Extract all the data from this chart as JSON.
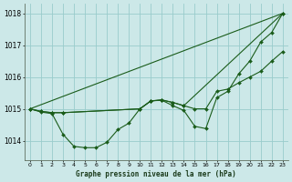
{
  "title": "Graphe pression niveau de la mer (hPa)",
  "background_color": "#cce8e8",
  "grid_color": "#99cccc",
  "line_color": "#1a5c1a",
  "xlim": [
    -0.5,
    23.5
  ],
  "ylim": [
    1013.4,
    1018.3
  ],
  "yticks": [
    1014,
    1015,
    1016,
    1017,
    1018
  ],
  "xtick_labels": [
    "0",
    "1",
    "2",
    "3",
    "4",
    "5",
    "6",
    "7",
    "8",
    "9",
    "10",
    "11",
    "12",
    "13",
    "14",
    "15",
    "16",
    "17",
    "18",
    "19",
    "20",
    "21",
    "22",
    "23"
  ],
  "series1_x": [
    0,
    1,
    2,
    3,
    4,
    5,
    6,
    7,
    8,
    9,
    10,
    11,
    12,
    13,
    14,
    15,
    16,
    17,
    18,
    19,
    20,
    21,
    22,
    23
  ],
  "series1_y": [
    1015.0,
    1014.9,
    1014.85,
    1014.2,
    1013.82,
    1013.78,
    1013.78,
    1013.95,
    1014.35,
    1014.55,
    1015.0,
    1015.25,
    1015.27,
    1015.1,
    1014.95,
    1014.45,
    1014.38,
    1015.35,
    1015.55,
    1016.1,
    1016.5,
    1017.1,
    1017.4,
    1018.0
  ],
  "series2_x": [
    0,
    1,
    2,
    3,
    10,
    11,
    12,
    13,
    14,
    15,
    16,
    17,
    18,
    19,
    20,
    21,
    22,
    23
  ],
  "series2_y": [
    1015.0,
    1014.92,
    1014.88,
    1014.88,
    1015.0,
    1015.25,
    1015.28,
    1015.2,
    1015.1,
    1015.0,
    1015.0,
    1015.55,
    1015.62,
    1015.82,
    1016.0,
    1016.18,
    1016.5,
    1016.8
  ],
  "series3_x": [
    0,
    1,
    2,
    3,
    10,
    11,
    12,
    13,
    14,
    23
  ],
  "series3_y": [
    1015.0,
    1014.92,
    1014.88,
    1014.88,
    1015.0,
    1015.25,
    1015.28,
    1015.2,
    1015.1,
    1018.0
  ],
  "series4_x": [
    0,
    23
  ],
  "series4_y": [
    1015.0,
    1018.0
  ]
}
